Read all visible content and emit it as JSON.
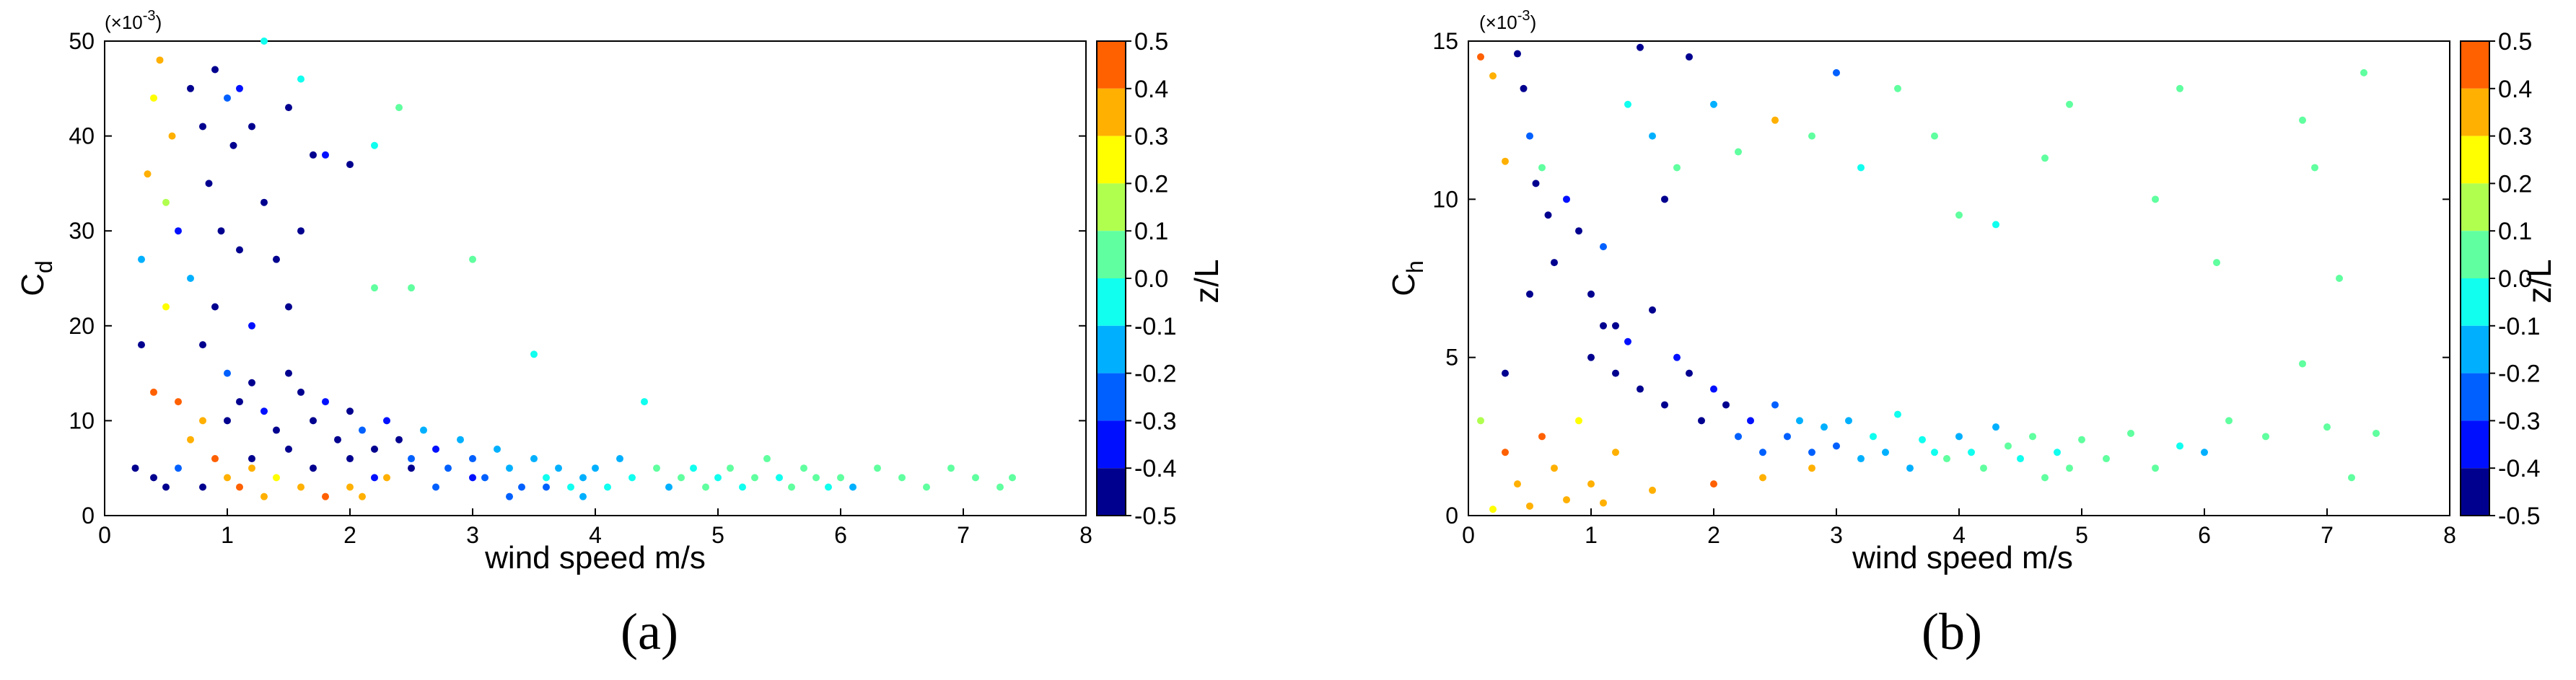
{
  "panels": [
    {
      "caption": "(a)",
      "multiplier": "(×10",
      "multiplier_exp": "-3",
      "multiplier_close": ")",
      "ylabel_main": "C",
      "ylabel_sub": "d",
      "xlabel": "wind speed m/s",
      "colorbar_title": "z/L",
      "x_ticks": [
        "0",
        "1",
        "2",
        "3",
        "4",
        "5",
        "6",
        "7",
        "8"
      ],
      "y_ticks": [
        "0",
        "10",
        "20",
        "30",
        "40",
        "50"
      ],
      "cb_ticks": [
        "0.5",
        "0.4",
        "0.3",
        "0.2",
        "0.1",
        "0.0",
        "-0.1",
        "-0.2",
        "-0.3",
        "-0.4",
        "-0.5"
      ]
    },
    {
      "caption": "(b)",
      "multiplier": "(×10",
      "multiplier_exp": "-3",
      "multiplier_close": ")",
      "ylabel_main": "C",
      "ylabel_sub": "h",
      "xlabel": "wind speed m/s",
      "colorbar_title": "z/L",
      "x_ticks": [
        "0",
        "1",
        "2",
        "3",
        "4",
        "5",
        "6",
        "7",
        "8"
      ],
      "y_ticks": [
        "0",
        "5",
        "10",
        "15"
      ],
      "cb_ticks": [
        "0.5",
        "0.4",
        "0.3",
        "0.2",
        "0.1",
        "0.0",
        "-0.1",
        "-0.2",
        "-0.3",
        "-0.4",
        "-0.5"
      ]
    }
  ],
  "chart_data": [
    {
      "type": "scatter",
      "title": "",
      "xlabel": "wind speed m/s",
      "ylabel": "C_d (×10^-3)",
      "xlim": [
        0,
        8
      ],
      "ylim": [
        0,
        50
      ],
      "colorbar": {
        "label": "z/L",
        "range": [
          -0.5,
          0.5
        ],
        "levels": 10,
        "colors": [
          "#00008f",
          "#0010ff",
          "#0060ff",
          "#00b0ff",
          "#10ffef",
          "#60ff9f",
          "#b0ff4f",
          "#ffff00",
          "#ffb000",
          "#ff6000"
        ]
      },
      "grid": false,
      "points": [
        [
          0.3,
          27,
          -0.2
        ],
        [
          0.35,
          36,
          0.3
        ],
        [
          0.4,
          44,
          0.2
        ],
        [
          0.45,
          48,
          0.3
        ],
        [
          0.5,
          33,
          0.15
        ],
        [
          0.55,
          40,
          0.35
        ],
        [
          0.3,
          18,
          -0.45
        ],
        [
          0.25,
          5,
          -0.4
        ],
        [
          0.4,
          13,
          0.4
        ],
        [
          0.5,
          22,
          0.2
        ],
        [
          0.6,
          30,
          -0.35
        ],
        [
          0.7,
          45,
          -0.45
        ],
        [
          0.8,
          41,
          -0.45
        ],
        [
          0.85,
          35,
          -0.4
        ],
        [
          0.9,
          47,
          -0.4
        ],
        [
          0.95,
          30,
          -0.45
        ],
        [
          1.0,
          44,
          -0.3
        ],
        [
          1.05,
          39,
          -0.45
        ],
        [
          1.1,
          45,
          -0.35
        ],
        [
          1.2,
          41,
          -0.4
        ],
        [
          0.7,
          25,
          -0.2
        ],
        [
          0.8,
          18,
          -0.45
        ],
        [
          0.9,
          22,
          -0.45
        ],
        [
          1.0,
          15,
          -0.3
        ],
        [
          1.1,
          28,
          -0.45
        ],
        [
          1.2,
          20,
          -0.35
        ],
        [
          1.3,
          33,
          -0.45
        ],
        [
          1.4,
          27,
          -0.4
        ],
        [
          1.5,
          22,
          -0.4
        ],
        [
          1.6,
          30,
          -0.45
        ],
        [
          1.3,
          50,
          -0.1
        ],
        [
          1.5,
          43,
          -0.45
        ],
        [
          1.7,
          38,
          -0.4
        ],
        [
          1.6,
          46,
          -0.1
        ],
        [
          1.8,
          38,
          -0.35
        ],
        [
          2.0,
          37,
          -0.45
        ],
        [
          2.2,
          39,
          -0.1
        ],
        [
          2.4,
          43,
          0.0
        ],
        [
          2.2,
          24,
          0.0
        ],
        [
          2.5,
          24,
          0.0
        ],
        [
          3.0,
          27,
          0.0
        ],
        [
          3.5,
          17,
          -0.1
        ],
        [
          0.6,
          12,
          0.4
        ],
        [
          0.7,
          8,
          0.3
        ],
        [
          0.8,
          10,
          0.3
        ],
        [
          0.9,
          6,
          0.4
        ],
        [
          1.0,
          4,
          0.3
        ],
        [
          1.1,
          3,
          0.4
        ],
        [
          1.2,
          5,
          0.35
        ],
        [
          1.3,
          2,
          0.3
        ],
        [
          0.4,
          4,
          -0.45
        ],
        [
          0.5,
          3,
          -0.4
        ],
        [
          0.6,
          5,
          -0.3
        ],
        [
          0.8,
          3,
          -0.4
        ],
        [
          1.4,
          4,
          0.2
        ],
        [
          1.6,
          3,
          0.35
        ],
        [
          1.8,
          2,
          0.4
        ],
        [
          2.0,
          3,
          0.35
        ],
        [
          2.1,
          2,
          0.3
        ],
        [
          2.3,
          4,
          0.3
        ],
        [
          1.0,
          10,
          -0.45
        ],
        [
          1.1,
          12,
          -0.4
        ],
        [
          1.2,
          14,
          -0.45
        ],
        [
          1.3,
          11,
          -0.35
        ],
        [
          1.4,
          9,
          -0.45
        ],
        [
          1.5,
          15,
          -0.45
        ],
        [
          1.6,
          13,
          -0.4
        ],
        [
          1.7,
          10,
          -0.45
        ],
        [
          1.8,
          12,
          -0.35
        ],
        [
          1.9,
          8,
          -0.45
        ],
        [
          2.0,
          11,
          -0.4
        ],
        [
          2.1,
          9,
          -0.3
        ],
        [
          2.2,
          7,
          -0.45
        ],
        [
          2.3,
          10,
          -0.35
        ],
        [
          2.4,
          8,
          -0.4
        ],
        [
          2.5,
          6,
          -0.3
        ],
        [
          2.6,
          9,
          -0.2
        ],
        [
          2.7,
          7,
          -0.35
        ],
        [
          2.8,
          5,
          -0.25
        ],
        [
          2.9,
          8,
          -0.2
        ],
        [
          3.0,
          6,
          -0.3
        ],
        [
          3.1,
          4,
          -0.25
        ],
        [
          3.2,
          7,
          -0.15
        ],
        [
          3.3,
          5,
          -0.2
        ],
        [
          3.4,
          3,
          -0.3
        ],
        [
          3.5,
          6,
          -0.15
        ],
        [
          3.6,
          4,
          -0.1
        ],
        [
          3.7,
          5,
          -0.2
        ],
        [
          3.8,
          3,
          -0.1
        ],
        [
          3.9,
          4,
          -0.2
        ],
        [
          4.0,
          5,
          -0.15
        ],
        [
          4.1,
          3,
          -0.1
        ],
        [
          4.2,
          6,
          -0.2
        ],
        [
          4.3,
          4,
          -0.05
        ],
        [
          4.4,
          12,
          -0.1
        ],
        [
          4.5,
          5,
          0.0
        ],
        [
          4.6,
          3,
          -0.15
        ],
        [
          4.7,
          4,
          0.0
        ],
        [
          4.8,
          5,
          -0.1
        ],
        [
          4.9,
          3,
          0.0
        ],
        [
          5.0,
          4,
          -0.05
        ],
        [
          5.1,
          5,
          0.0
        ],
        [
          5.2,
          3,
          -0.1
        ],
        [
          5.3,
          4,
          0.0
        ],
        [
          5.4,
          6,
          0.0
        ],
        [
          5.5,
          4,
          -0.05
        ],
        [
          5.6,
          3,
          0.0
        ],
        [
          5.7,
          5,
          0.05
        ],
        [
          5.8,
          4,
          0.0
        ],
        [
          5.9,
          3,
          -0.1
        ],
        [
          6.0,
          4,
          0.0
        ],
        [
          6.1,
          3,
          -0.2
        ],
        [
          6.3,
          5,
          0.0
        ],
        [
          6.5,
          4,
          0.0
        ],
        [
          6.7,
          3,
          0.0
        ],
        [
          6.9,
          5,
          0.0
        ],
        [
          7.1,
          4,
          0.0
        ],
        [
          7.3,
          3,
          0.0
        ],
        [
          7.4,
          4,
          0.0
        ],
        [
          1.2,
          6,
          -0.45
        ],
        [
          1.5,
          7,
          -0.45
        ],
        [
          1.7,
          5,
          -0.4
        ],
        [
          2.0,
          6,
          -0.45
        ],
        [
          2.2,
          4,
          -0.35
        ],
        [
          2.5,
          5,
          -0.4
        ],
        [
          2.7,
          3,
          -0.3
        ],
        [
          3.0,
          4,
          -0.35
        ],
        [
          3.3,
          2,
          -0.3
        ],
        [
          3.6,
          3,
          -0.25
        ],
        [
          3.9,
          2,
          -0.2
        ]
      ]
    },
    {
      "type": "scatter",
      "title": "",
      "xlabel": "wind speed m/s",
      "ylabel": "C_h (×10^-3)",
      "xlim": [
        0,
        8
      ],
      "ylim": [
        0,
        15
      ],
      "colorbar": {
        "label": "z/L",
        "range": [
          -0.5,
          0.5
        ],
        "levels": 10,
        "colors": [
          "#00008f",
          "#0010ff",
          "#0060ff",
          "#00b0ff",
          "#10ffef",
          "#60ff9f",
          "#b0ff4f",
          "#ffff00",
          "#ffb000",
          "#ff6000"
        ]
      },
      "grid": false,
      "points": [
        [
          0.1,
          14.5,
          0.4
        ],
        [
          0.2,
          13.9,
          0.35
        ],
        [
          0.3,
          11.2,
          0.3
        ],
        [
          0.4,
          14.6,
          -0.4
        ],
        [
          0.45,
          13.5,
          -0.45
        ],
        [
          0.5,
          12.0,
          -0.3
        ],
        [
          0.55,
          10.5,
          -0.45
        ],
        [
          0.6,
          11.0,
          0.0
        ],
        [
          0.65,
          9.5,
          -0.4
        ],
        [
          0.7,
          8.0,
          -0.45
        ],
        [
          0.8,
          10.0,
          -0.35
        ],
        [
          0.9,
          9.0,
          -0.45
        ],
        [
          1.0,
          7.0,
          -0.4
        ],
        [
          1.1,
          8.5,
          -0.3
        ],
        [
          1.2,
          6.0,
          -0.45
        ],
        [
          1.3,
          13.0,
          -0.1
        ],
        [
          1.4,
          14.8,
          -0.4
        ],
        [
          1.5,
          12.0,
          -0.2
        ],
        [
          1.6,
          10.0,
          -0.45
        ],
        [
          1.7,
          11.0,
          0.0
        ],
        [
          1.8,
          14.5,
          -0.45
        ],
        [
          2.0,
          13.0,
          -0.2
        ],
        [
          2.2,
          11.5,
          0.0
        ],
        [
          2.5,
          12.5,
          0.3
        ],
        [
          2.8,
          12.0,
          0.0
        ],
        [
          3.0,
          14.0,
          -0.3
        ],
        [
          3.2,
          11.0,
          -0.1
        ],
        [
          3.5,
          13.5,
          0.0
        ],
        [
          3.8,
          12.0,
          0.0
        ],
        [
          4.0,
          9.5,
          0.0
        ],
        [
          4.3,
          9.2,
          -0.1
        ],
        [
          4.7,
          11.3,
          0.0
        ],
        [
          4.9,
          13.0,
          0.0
        ],
        [
          5.6,
          10.0,
          0.0
        ],
        [
          5.8,
          13.5,
          0.0
        ],
        [
          6.8,
          12.5,
          0.0
        ],
        [
          6.9,
          11.0,
          0.0
        ],
        [
          7.3,
          14.0,
          0.0
        ],
        [
          7.1,
          7.5,
          0.0
        ],
        [
          6.1,
          8.0,
          0.0
        ],
        [
          0.3,
          2.0,
          0.4
        ],
        [
          0.4,
          1.0,
          0.35
        ],
        [
          0.5,
          0.3,
          0.3
        ],
        [
          0.6,
          2.5,
          0.4
        ],
        [
          0.7,
          1.5,
          0.35
        ],
        [
          0.8,
          0.5,
          0.3
        ],
        [
          0.9,
          3.0,
          0.2
        ],
        [
          1.0,
          1.0,
          0.3
        ],
        [
          1.1,
          0.4,
          0.35
        ],
        [
          1.2,
          2.0,
          0.3
        ],
        [
          1.0,
          5.0,
          -0.45
        ],
        [
          1.1,
          6.0,
          -0.4
        ],
        [
          1.2,
          4.5,
          -0.45
        ],
        [
          1.3,
          5.5,
          -0.35
        ],
        [
          1.4,
          4.0,
          -0.45
        ],
        [
          1.5,
          6.5,
          -0.4
        ],
        [
          1.6,
          3.5,
          -0.45
        ],
        [
          1.7,
          5.0,
          -0.35
        ],
        [
          1.8,
          4.5,
          -0.4
        ],
        [
          1.9,
          3.0,
          -0.45
        ],
        [
          2.0,
          4.0,
          -0.35
        ],
        [
          2.1,
          3.5,
          -0.4
        ],
        [
          2.2,
          2.5,
          -0.3
        ],
        [
          2.3,
          3.0,
          -0.35
        ],
        [
          2.4,
          2.0,
          -0.3
        ],
        [
          2.5,
          3.5,
          -0.25
        ],
        [
          2.6,
          2.5,
          -0.3
        ],
        [
          2.7,
          3.0,
          -0.2
        ],
        [
          2.8,
          2.0,
          -0.25
        ],
        [
          2.9,
          2.8,
          -0.2
        ],
        [
          3.0,
          2.2,
          -0.25
        ],
        [
          3.1,
          3.0,
          -0.15
        ],
        [
          3.2,
          1.8,
          -0.2
        ],
        [
          3.3,
          2.5,
          -0.1
        ],
        [
          3.4,
          2.0,
          -0.2
        ],
        [
          3.5,
          3.2,
          -0.1
        ],
        [
          3.6,
          1.5,
          -0.15
        ],
        [
          3.7,
          2.4,
          -0.05
        ],
        [
          3.8,
          2.0,
          -0.1
        ],
        [
          3.9,
          1.8,
          0.0
        ],
        [
          4.0,
          2.5,
          -0.2
        ],
        [
          4.1,
          2.0,
          -0.1
        ],
        [
          4.2,
          1.5,
          0.0
        ],
        [
          4.3,
          2.8,
          -0.15
        ],
        [
          4.4,
          2.2,
          0.0
        ],
        [
          4.5,
          1.8,
          -0.1
        ],
        [
          4.6,
          2.5,
          0.0
        ],
        [
          4.7,
          1.2,
          0.0
        ],
        [
          4.8,
          2.0,
          -0.05
        ],
        [
          4.9,
          1.5,
          0.0
        ],
        [
          5.0,
          2.4,
          0.0
        ],
        [
          5.2,
          1.8,
          0.0
        ],
        [
          5.4,
          2.6,
          0.0
        ],
        [
          5.6,
          1.5,
          0.0
        ],
        [
          5.8,
          2.2,
          -0.1
        ],
        [
          6.0,
          2.0,
          -0.2
        ],
        [
          6.2,
          3.0,
          0.0
        ],
        [
          6.5,
          2.5,
          0.0
        ],
        [
          6.8,
          4.8,
          0.0
        ],
        [
          7.0,
          2.8,
          0.0
        ],
        [
          7.2,
          1.2,
          0.0
        ],
        [
          7.4,
          2.6,
          0.0
        ],
        [
          2.0,
          1.0,
          0.4
        ],
        [
          2.4,
          1.2,
          0.35
        ],
        [
          2.8,
          1.5,
          0.3
        ],
        [
          1.5,
          0.8,
          0.35
        ],
        [
          0.2,
          0.2,
          0.2
        ],
        [
          0.1,
          3.0,
          0.1
        ],
        [
          0.3,
          4.5,
          -0.4
        ],
        [
          0.5,
          7.0,
          -0.45
        ]
      ]
    }
  ]
}
